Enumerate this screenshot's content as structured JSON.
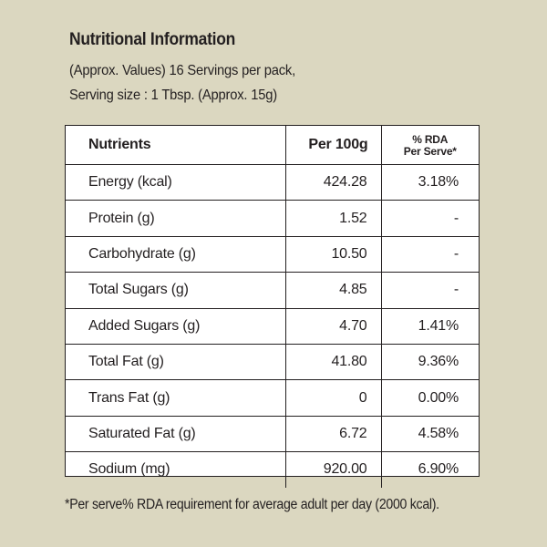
{
  "header": {
    "title": "Nutritional Information",
    "line1": "(Approx. Values) 16 Servings per pack,",
    "line2": "Serving size : 1 Tbsp. (Approx. 15g)"
  },
  "table": {
    "columns": {
      "nutrients": "Nutrients",
      "per100g": "Per 100g",
      "rda_line1": "% RDA",
      "rda_line2": "Per Serve*"
    },
    "rows": [
      {
        "name": "Energy (kcal)",
        "per100g": "424.28",
        "rda": "3.18%"
      },
      {
        "name": "Protein (g)",
        "per100g": "1.52",
        "rda": "-"
      },
      {
        "name": "Carbohydrate (g)",
        "per100g": "10.50",
        "rda": "-"
      },
      {
        "name": "Total Sugars (g)",
        "per100g": "4.85",
        "rda": "-"
      },
      {
        "name": "Added Sugars (g)",
        "per100g": "4.70",
        "rda": "1.41%"
      },
      {
        "name": "Total Fat (g)",
        "per100g": "41.80",
        "rda": "9.36%"
      },
      {
        "name": "Trans Fat (g)",
        "per100g": "0",
        "rda": "0.00%"
      },
      {
        "name": "Saturated Fat (g)",
        "per100g": "6.72",
        "rda": "4.58%"
      },
      {
        "name": "Sodium (mg)",
        "per100g": "920.00",
        "rda": "6.90%"
      }
    ]
  },
  "footnote": "*Per serve% RDA requirement for average adult per day (2000 kcal).",
  "colors": {
    "background": "#dbd7c0",
    "panel": "#ffffff",
    "text": "#231f20"
  }
}
